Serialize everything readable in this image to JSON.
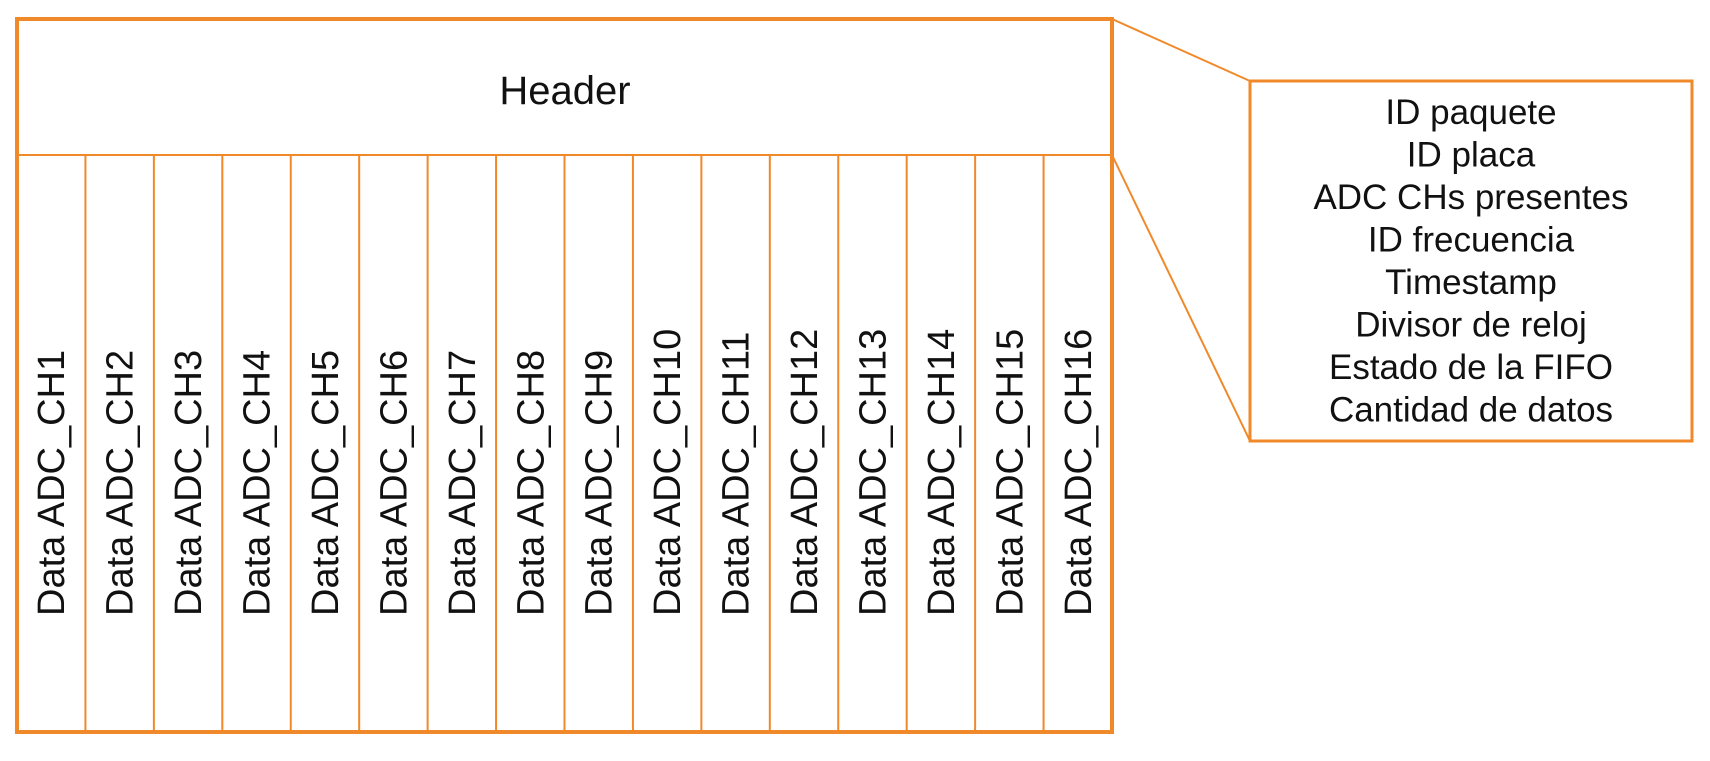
{
  "accent_color": "#f0892a",
  "text_color": "#111111",
  "packet": {
    "header_label": "Header",
    "channels": [
      "Data ADC_CH1",
      "Data ADC_CH2",
      "Data ADC_CH3",
      "Data ADC_CH4",
      "Data ADC_CH5",
      "Data ADC_CH6",
      "Data ADC_CH7",
      "Data ADC_CH8",
      "Data ADC_CH9",
      "Data ADC_CH10",
      "Data ADC_CH11",
      "Data ADC_CH12",
      "Data ADC_CH13",
      "Data ADC_CH14",
      "Data ADC_CH15",
      "Data ADC_CH16"
    ]
  },
  "header_details": [
    "ID paquete",
    "ID placa",
    "ADC CHs presentes",
    "ID frecuencia",
    "Timestamp",
    "Divisor de reloj",
    "Estado de la FIFO",
    "Cantidad de datos"
  ]
}
